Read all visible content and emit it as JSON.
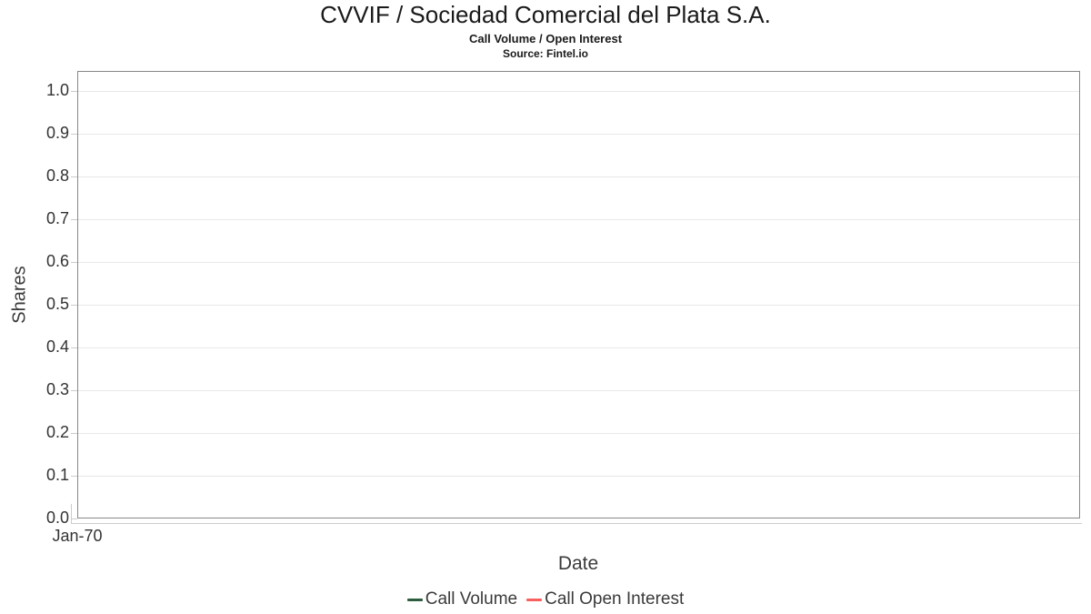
{
  "header": {
    "title": "CVVIF / Sociedad Comercial del Plata S.A.",
    "subtitle": "Call Volume / Open Interest",
    "source": "Source: Fintel.io"
  },
  "chart_data": {
    "type": "line",
    "title": "CVVIF / Sociedad Comercial del Plata S.A.",
    "subtitle": "Call Volume / Open Interest",
    "source_note": "Source: Fintel.io",
    "xlabel": "Date",
    "ylabel": "Shares",
    "x_tick_labels": [
      "Jan-70"
    ],
    "y_ticks": [
      0.0,
      0.1,
      0.2,
      0.3,
      0.4,
      0.5,
      0.6,
      0.7,
      0.8,
      0.9,
      1.0
    ],
    "ylim": [
      0.0,
      1.0
    ],
    "grid": true,
    "legend_position": "bottom",
    "series": [
      {
        "name": "Call Volume",
        "color": "#2c5d3f",
        "values": []
      },
      {
        "name": "Call Open Interest",
        "color": "#f85f5f",
        "values": []
      }
    ],
    "style": {
      "grid_color": "#e8e8e8",
      "plot_border_color": "#888888",
      "tick_color": "#cccccc",
      "text_color": "#333333"
    }
  }
}
